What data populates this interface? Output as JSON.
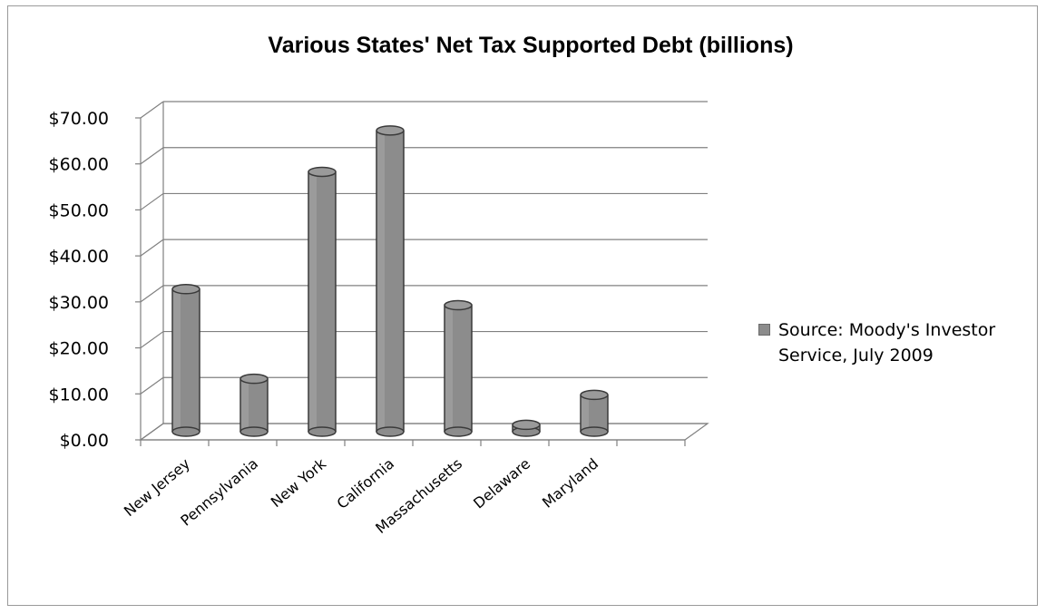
{
  "chart_data": {
    "type": "bar",
    "title": "Various States' Net Tax Supported Debt (billions)",
    "categories": [
      "New Jersey",
      "Pennsylvania",
      "New York",
      "California",
      "Massachusetts",
      "Delaware",
      "Maryland"
    ],
    "series": [
      {
        "name": "Source: Moody's Investor Service, July 2009",
        "values": [
          31.0,
          11.5,
          56.5,
          65.5,
          27.5,
          1.5,
          8.0
        ]
      }
    ],
    "ylim": [
      0,
      70
    ],
    "yticks": [
      "$0.00",
      "$10.00",
      "$20.00",
      "$30.00",
      "$40.00",
      "$50.00",
      "$60.00",
      "$70.00"
    ],
    "grid": true,
    "legend_position": "right",
    "bar_color": "#8c8c8c"
  }
}
